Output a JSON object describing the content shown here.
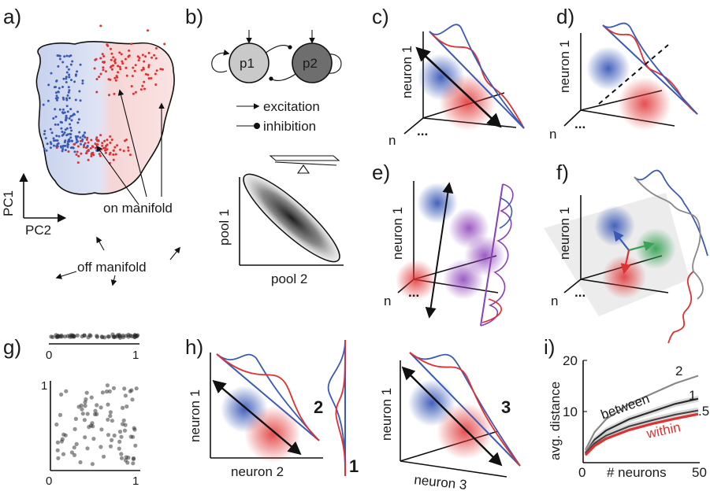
{
  "colors": {
    "blue": "#3b5ab8",
    "red": "#e03030",
    "purple": "#8a3fb8",
    "green": "#3aa356",
    "gray": "#888888",
    "dark": "#1a1a1a"
  },
  "panels": {
    "a": {
      "label": "a)",
      "axis_y": "PC1",
      "axis_x": "PC2",
      "on_manifold": "on manifold",
      "off_manifold": "off manifold"
    },
    "b": {
      "label": "b)",
      "node1": "p1",
      "node2": "p2",
      "legend_excitation": "excitation",
      "legend_inhibition": "inhibition",
      "xlabel": "pool 2",
      "ylabel": "pool 1"
    },
    "c": {
      "label": "c)",
      "ylabel": "neuron 1",
      "n_label": "n",
      "dots": "..."
    },
    "d": {
      "label": "d)",
      "ylabel": "neuron 1",
      "n_label": "n",
      "dots": "..."
    },
    "e": {
      "label": "e)",
      "ylabel": "neuron 1",
      "n_label": "n",
      "dots": "..."
    },
    "f": {
      "label": "f)",
      "ylabel": "neuron 1",
      "n_label": "n",
      "dots": "..."
    },
    "g": {
      "label": "g)",
      "tick_0_top": "0",
      "tick_1_top": "1",
      "tick_0_bottom": "0",
      "tick_1_bottom": "1",
      "tick_1_left": "1"
    },
    "h": {
      "label": "h)",
      "left_ylabel": "neuron 1",
      "left_xlabel": "neuron 2",
      "right_ylabel": "neuron 1",
      "right_xlabel": "neuron 3",
      "num1": "1",
      "num2": "2",
      "num3": "3"
    },
    "i": {
      "label": "i)",
      "ylabel": "avg. distance",
      "xlabel": "# neurons",
      "ytick_10": "10",
      "ytick_20": "20",
      "xtick_0": "0",
      "xtick_50": "50",
      "between": "between",
      "within": "within",
      "curve_label_2": "2",
      "curve_label_1": "1",
      "curve_label_5": ".5"
    }
  },
  "chart_data": {
    "type": "line",
    "xlabel": "# neurons",
    "ylabel": "avg. distance",
    "xlim": [
      0,
      50
    ],
    "ylim": [
      0,
      20
    ],
    "series": [
      {
        "name": "2",
        "x": [
          1,
          5,
          10,
          20,
          30,
          40,
          50
        ],
        "values": [
          2.5,
          6,
          8.5,
          11.5,
          13.5,
          15.5,
          17
        ]
      },
      {
        "name": "1",
        "x": [
          1,
          5,
          10,
          20,
          30,
          40,
          50
        ],
        "values": [
          2,
          4.5,
          6.3,
          8.5,
          10,
          11.5,
          12.5
        ]
      },
      {
        "name": ".5",
        "x": [
          1,
          5,
          10,
          20,
          30,
          40,
          50
        ],
        "values": [
          1.8,
          3.8,
          5.3,
          7.1,
          8.3,
          9.4,
          10.2
        ]
      },
      {
        "name": "within",
        "x": [
          1,
          5,
          10,
          20,
          30,
          40,
          50
        ],
        "values": [
          1.5,
          3.3,
          4.7,
          6.4,
          7.6,
          8.6,
          9.5
        ]
      }
    ]
  }
}
